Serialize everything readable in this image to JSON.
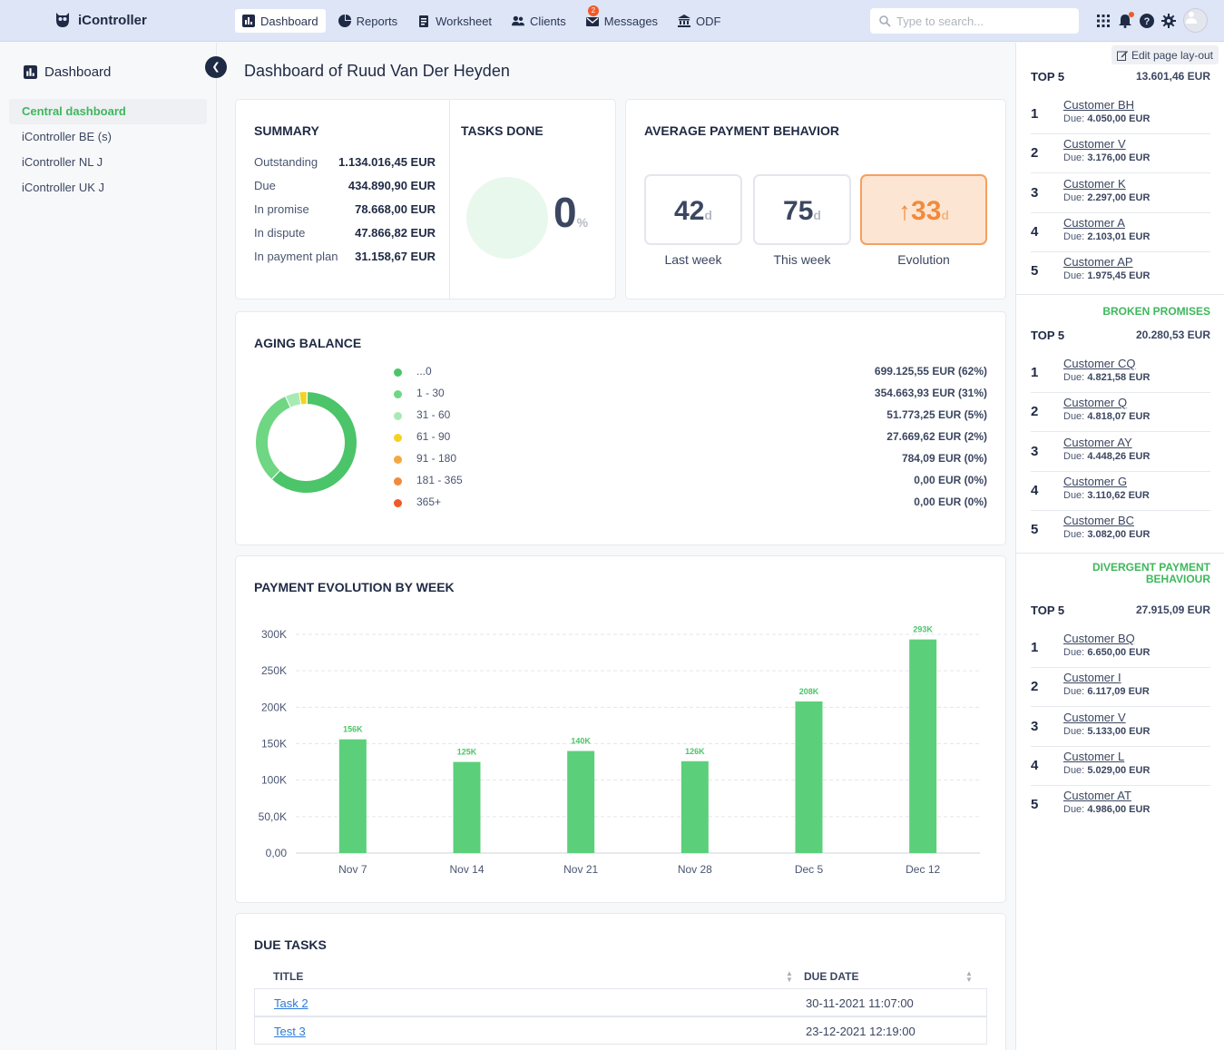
{
  "app": {
    "name": "iController"
  },
  "nav": {
    "items": [
      {
        "label": "Dashboard",
        "icon": "bar-chart-icon"
      },
      {
        "label": "Reports",
        "icon": "pie-chart-icon"
      },
      {
        "label": "Worksheet",
        "icon": "clipboard-icon"
      },
      {
        "label": "Clients",
        "icon": "users-icon"
      },
      {
        "label": "Messages",
        "icon": "mail-icon",
        "badge": "2"
      },
      {
        "label": "ODF",
        "icon": "bank-icon"
      }
    ],
    "search_placeholder": "Type to search..."
  },
  "sidebar": {
    "title": "Dashboard",
    "items": [
      "Central dashboard",
      "iController BE (s)",
      "iController NL J",
      "iController UK J"
    ]
  },
  "page": {
    "title": "Dashboard of Ruud Van Der Heyden"
  },
  "summary": {
    "title": "SUMMARY",
    "rows": [
      {
        "label": "Outstanding",
        "value": "1.134.016,45 EUR"
      },
      {
        "label": "Due",
        "value": "434.890,90 EUR"
      },
      {
        "label": "In promise",
        "value": "78.668,00 EUR"
      },
      {
        "label": "In dispute",
        "value": "47.866,82 EUR"
      },
      {
        "label": "In payment plan",
        "value": "31.158,67 EUR"
      }
    ]
  },
  "tasks_done": {
    "title": "TASKS DONE",
    "value": "0",
    "unit": "%",
    "fraction": 0
  },
  "payment_behavior": {
    "title": "AVERAGE PAYMENT BEHAVIOR",
    "last_week": {
      "value": "42",
      "unit": "d",
      "label": "Last week"
    },
    "this_week": {
      "value": "75",
      "unit": "d",
      "label": "This week"
    },
    "evolution": {
      "value": "33",
      "unit": "d",
      "label": "Evolution",
      "arrow": "↑"
    }
  },
  "aging": {
    "title": "AGING BALANCE",
    "rows": [
      {
        "range": "...0",
        "amount": "699.125,55 EUR (62%)",
        "color": "#4cc46a",
        "value": 699125.55
      },
      {
        "range": "1 - 30",
        "amount": "354.663,93 EUR (31%)",
        "color": "#6fd684",
        "value": 354663.93
      },
      {
        "range": "31 - 60",
        "amount": "51.773,25 EUR (5%)",
        "color": "#a8eab4",
        "value": 51773.25
      },
      {
        "range": "61 - 90",
        "amount": "27.669,62 EUR (2%)",
        "color": "#f4d21f",
        "value": 27669.62
      },
      {
        "range": "91 - 180",
        "amount": "784,09 EUR (0%)",
        "color": "#f5a742",
        "value": 784.09
      },
      {
        "range": "181 - 365",
        "amount": "0,00 EUR (0%)",
        "color": "#f08a3c",
        "value": 0
      },
      {
        "range": "365+",
        "amount": "0,00 EUR (0%)",
        "color": "#f05a28",
        "value": 0
      }
    ]
  },
  "payment_evolution": {
    "title": "PAYMENT EVOLUTION BY WEEK",
    "chart_data": {
      "type": "bar",
      "categories": [
        "Nov 7",
        "Nov 14",
        "Nov 21",
        "Nov 28",
        "Dec 5",
        "Dec 12"
      ],
      "values": [
        156,
        125,
        140,
        126,
        208,
        293
      ],
      "labels": [
        "156K",
        "125K",
        "140K",
        "126K",
        "208K",
        "293K"
      ],
      "y_ticks": [
        "0,00",
        "50,0K",
        "100K",
        "150K",
        "200K",
        "250K",
        "300K"
      ],
      "ylim": [
        0,
        300
      ],
      "grid": true,
      "color": "#5ccf7b"
    }
  },
  "due_tasks": {
    "title": "DUE TASKS",
    "headers": {
      "title": "TITLE",
      "due_date": "DUE DATE"
    },
    "rows": [
      {
        "title": "Task 2",
        "due": "30-11-2021 11:07:00"
      },
      {
        "title": "Test 3",
        "due": "23-12-2021 12:19:00"
      }
    ]
  },
  "right_panel": {
    "edit_label": "Edit page lay-out",
    "sections": [
      {
        "title": "",
        "top_label": "TOP 5",
        "total": "13.601,46 EUR",
        "items": [
          {
            "rank": "1",
            "name": "Customer BH",
            "due_label": "Due:",
            "due": "4.050,00 EUR"
          },
          {
            "rank": "2",
            "name": "Customer V",
            "due_label": "Due:",
            "due": "3.176,00 EUR"
          },
          {
            "rank": "3",
            "name": "Customer K",
            "due_label": "Due:",
            "due": "2.297,00 EUR"
          },
          {
            "rank": "4",
            "name": "Customer A",
            "due_label": "Due:",
            "due": "2.103,01 EUR"
          },
          {
            "rank": "5",
            "name": "Customer AP",
            "due_label": "Due:",
            "due": "1.975,45 EUR"
          }
        ]
      },
      {
        "title": "BROKEN PROMISES",
        "top_label": "TOP 5",
        "total": "20.280,53 EUR",
        "items": [
          {
            "rank": "1",
            "name": "Customer CQ",
            "due_label": "Due:",
            "due": "4.821,58 EUR"
          },
          {
            "rank": "2",
            "name": "Customer Q",
            "due_label": "Due:",
            "due": "4.818,07 EUR"
          },
          {
            "rank": "3",
            "name": "Customer AY",
            "due_label": "Due:",
            "due": "4.448,26 EUR"
          },
          {
            "rank": "4",
            "name": "Customer G",
            "due_label": "Due:",
            "due": "3.110,62 EUR"
          },
          {
            "rank": "5",
            "name": "Customer BC",
            "due_label": "Due:",
            "due": "3.082,00 EUR"
          }
        ]
      },
      {
        "title": "DIVERGENT PAYMENT BEHAVIOUR",
        "top_label": "TOP 5",
        "total": "27.915,09 EUR",
        "items": [
          {
            "rank": "1",
            "name": "Customer BQ",
            "due_label": "Due:",
            "due": "6.650,00 EUR"
          },
          {
            "rank": "2",
            "name": "Customer I",
            "due_label": "Due:",
            "due": "6.117,09 EUR"
          },
          {
            "rank": "3",
            "name": "Customer V",
            "due_label": "Due:",
            "due": "5.133,00 EUR"
          },
          {
            "rank": "4",
            "name": "Customer L",
            "due_label": "Due:",
            "due": "5.029,00 EUR"
          },
          {
            "rank": "5",
            "name": "Customer AT",
            "due_label": "Due:",
            "due": "4.986,00 EUR"
          }
        ]
      }
    ]
  }
}
